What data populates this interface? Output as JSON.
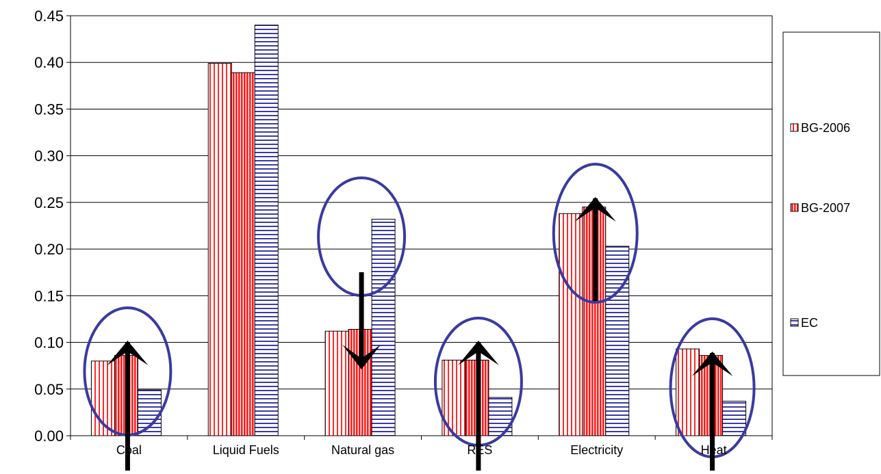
{
  "chart_data": {
    "type": "bar",
    "title": "",
    "xlabel": "",
    "ylabel": "",
    "categories": [
      "Coal",
      "Liquid Fuels",
      "Natural gas",
      "RES",
      "Electricity",
      "Heat"
    ],
    "ylim": [
      0,
      0.45
    ],
    "yticks": [
      "0.00",
      "0.05",
      "0.10",
      "0.15",
      "0.20",
      "0.25",
      "0.30",
      "0.35",
      "0.40",
      "0.45"
    ],
    "grid": true,
    "legend_position": "right",
    "series": [
      {
        "name": "BG-2006",
        "values": [
          0.08,
          0.399,
          0.112,
          0.081,
          0.238,
          0.093
        ],
        "pattern": "vertical-stripes-white",
        "color": "#ff0000"
      },
      {
        "name": "BG-2007",
        "values": [
          0.086,
          0.389,
          0.114,
          0.081,
          0.245,
          0.086
        ],
        "pattern": "vertical-stripes-red",
        "color": "#ff0000"
      },
      {
        "name": "EC",
        "values": [
          0.049,
          0.44,
          0.232,
          0.041,
          0.203,
          0.037
        ],
        "pattern": "horizontal-stripes",
        "color": "#3333aa"
      }
    ],
    "annotations": [
      {
        "category": "Coal",
        "arrow": "up"
      },
      {
        "category": "Natural gas",
        "arrow": "down"
      },
      {
        "category": "RES",
        "arrow": "up"
      },
      {
        "category": "Electricity",
        "arrow": "up"
      },
      {
        "category": "Heat",
        "arrow": "up"
      }
    ],
    "annotation_color": "#3a3aa0"
  }
}
